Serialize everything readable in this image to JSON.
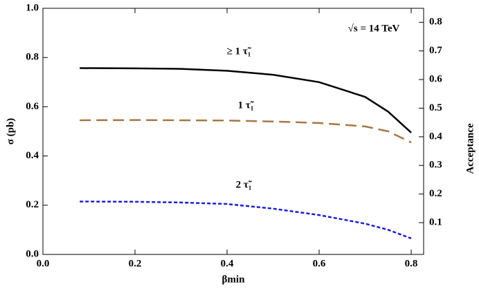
{
  "chart_data": {
    "type": "line",
    "annotation": "√s = 14 TeV",
    "x_label": "βmin",
    "y_label": "σ (pb)",
    "y2_label": "Acceptance",
    "x": [
      0.08,
      0.2,
      0.3,
      0.4,
      0.5,
      0.6,
      0.7,
      0.75,
      0.8
    ],
    "series": [
      {
        "name": "≥ 1 τ̃₁",
        "color": "#000000",
        "dash": "solid",
        "values": [
          0.757,
          0.756,
          0.754,
          0.746,
          0.73,
          0.7,
          0.64,
          0.58,
          0.495
        ]
      },
      {
        "name": "1 τ̃₁",
        "color": "#a87540",
        "dash": "dashed",
        "values": [
          0.545,
          0.546,
          0.545,
          0.544,
          0.54,
          0.534,
          0.52,
          0.5,
          0.455
        ]
      },
      {
        "name": "2 τ̃₁",
        "color": "#1a1ae6",
        "dash": "dotted",
        "values": [
          0.215,
          0.214,
          0.211,
          0.205,
          0.186,
          0.16,
          0.125,
          0.1,
          0.065
        ]
      }
    ],
    "xlim": [
      0,
      0.827
    ],
    "xticks": [
      {
        "value": 0,
        "label": "0.0"
      },
      0.2,
      0.4,
      0.6,
      0.8
    ],
    "ylim": [
      0,
      1
    ],
    "yticks": [
      {
        "value": 0,
        "label": "0.0"
      },
      0.2,
      0.4,
      0.6,
      0.8,
      {
        "value": 1,
        "label": "1.0"
      }
    ],
    "y2lim": [
      -0.011,
      0.849
    ],
    "y2ticks": [
      0.1,
      0.2,
      0.3,
      0.4,
      0.5,
      0.6,
      0.7,
      0.8
    ]
  }
}
